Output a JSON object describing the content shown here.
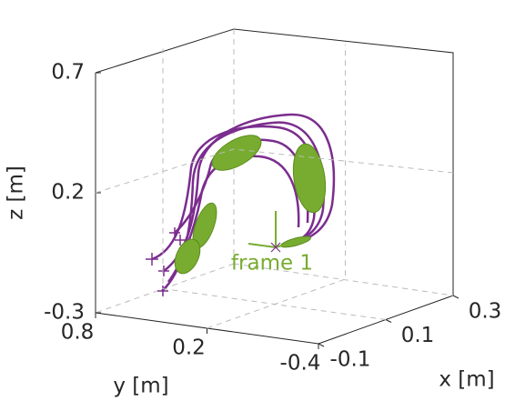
{
  "chart_data": {
    "type": "line3d",
    "xlabel": "x [m]",
    "ylabel": "y [m]",
    "zlabel": "z [m]",
    "xlim": [
      -0.1,
      0.3
    ],
    "xticks": [
      -0.1,
      0.1,
      0.3
    ],
    "ylim": [
      0.8,
      -0.4
    ],
    "yticks": [
      0.8,
      0.2,
      -0.4
    ],
    "zlim": [
      -0.3,
      0.7
    ],
    "zticks": [
      -0.3,
      0.2,
      0.7
    ],
    "annotation": "frame 1",
    "grid": true
  }
}
